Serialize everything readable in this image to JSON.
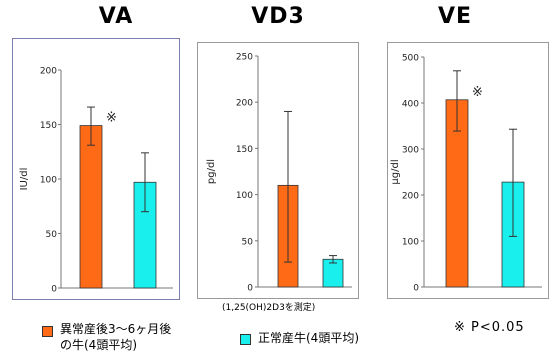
{
  "colors": {
    "postpartum": "#ff6a16",
    "normal": "#19f0ee",
    "frame": "#9a9a9a",
    "frame_left": "#7c7cb0"
  },
  "chart_data": [
    {
      "type": "bar",
      "title": "VA",
      "ylabel": "IU/dl",
      "ylim": [
        0,
        200
      ],
      "yticks": [
        0,
        50,
        100,
        150,
        200
      ],
      "categories": [
        "異常産後3～6ヶ月後の牛(4頭平均)",
        "正常産牛(4頭平均)"
      ],
      "values": [
        149,
        97
      ],
      "error_low": [
        131,
        70
      ],
      "error_high": [
        166,
        124
      ],
      "annotation": "※",
      "annotation_index": 0,
      "footnote": ""
    },
    {
      "type": "bar",
      "title": "VD3",
      "ylabel": "pg/dl",
      "ylim": [
        0,
        250
      ],
      "yticks": [
        0,
        50,
        100,
        150,
        200,
        250
      ],
      "categories": [
        "異常産後3～6ヶ月後の牛(4頭平均)",
        "正常産牛(4頭平均)"
      ],
      "values": [
        110,
        30
      ],
      "error_low": [
        27,
        26
      ],
      "error_high": [
        190,
        34
      ],
      "annotation": "",
      "annotation_index": -1,
      "footnote": "(1,25(OH)2D3を測定)"
    },
    {
      "type": "bar",
      "title": "VE",
      "ylabel": "μg/dl",
      "ylim": [
        0,
        500
      ],
      "yticks": [
        0,
        100,
        200,
        300,
        400,
        500
      ],
      "categories": [
        "異常産後3～6ヶ月後の牛(4頭平均)",
        "正常産牛(4頭平均)"
      ],
      "values": [
        407,
        228
      ],
      "error_low": [
        339,
        110
      ],
      "error_high": [
        470,
        343
      ],
      "annotation": "※",
      "annotation_index": 0,
      "footnote": ""
    }
  ],
  "legend": {
    "postpartum_line1": "異常産後3～6ヶ月後",
    "postpartum_line2": "の牛(4頭平均)",
    "normal": "正常産牛(4頭平均)"
  },
  "significance_note": "※ P<0.05"
}
